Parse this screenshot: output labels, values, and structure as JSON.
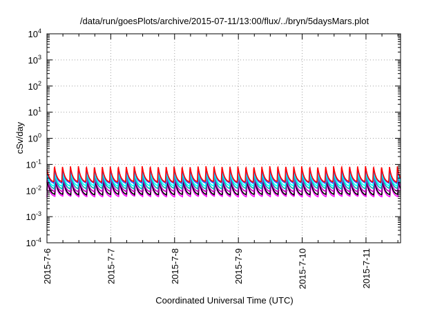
{
  "chart_data": {
    "type": "line",
    "title": "/data/run/goesPlots/archive/2015-07-11/13:00/flux/../bryn/5daysMars.plot",
    "xlabel": "Coordinated Universal Time (UTC)",
    "ylabel": "cSv/day",
    "yscale": "log",
    "ylim": [
      0.0001,
      10000
    ],
    "xlim": [
      "2015-07-06T00:00",
      "2015-07-11T13:00"
    ],
    "grid": true,
    "x_tick_labels": [
      "2015-7-6",
      "2015-7-7",
      "2015-7-8",
      "2015-7-9",
      "2015-7-10",
      "2015-7-11"
    ],
    "y_tick_labels": [
      {
        "base": "10",
        "exp": "4"
      },
      {
        "base": "10",
        "exp": "3"
      },
      {
        "base": "10",
        "exp": "2"
      },
      {
        "base": "10",
        "exp": "1"
      },
      {
        "base": "10",
        "exp": "0"
      },
      {
        "base": "10",
        "exp": "-1"
      },
      {
        "base": "10",
        "exp": "-2"
      },
      {
        "base": "10",
        "exp": "-3"
      },
      {
        "base": "10",
        "exp": "-4"
      }
    ],
    "pattern": {
      "cycles_per_day": 8,
      "peak_hour_offset": 0.6
    },
    "series": [
      {
        "color": "#ff00ff",
        "min": 0.0055,
        "max": 0.022
      },
      {
        "color": "#000000",
        "min": 0.0065,
        "max": 0.026
      },
      {
        "color": "#c000c0",
        "min": 0.0085,
        "max": 0.032
      },
      {
        "color": "#00b0b0",
        "min": 0.011,
        "max": 0.045
      },
      {
        "color": "#00ffff",
        "min": 0.014,
        "max": 0.055
      },
      {
        "color": "#3050ff",
        "min": 0.018,
        "max": 0.075
      },
      {
        "color": "#ff0000",
        "min": 0.02,
        "max": 0.085
      }
    ]
  }
}
